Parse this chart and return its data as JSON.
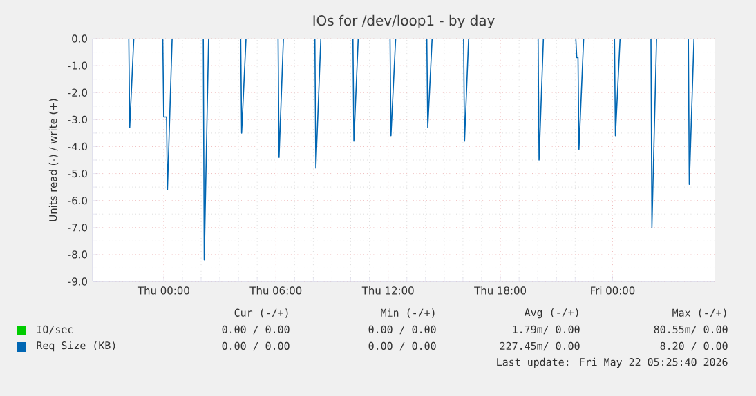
{
  "chart_data": {
    "type": "line",
    "title": "IOs for /dev/loop1 - by day",
    "ylabel": "Units read (-) / write (+)",
    "xlim": [
      "2026-05-20T20:12",
      "2026-05-22T05:27"
    ],
    "ylim": [
      -9,
      0
    ],
    "xticks": [
      {
        "value": "2026-05-21T00:00",
        "label": "Thu 00:00"
      },
      {
        "value": "2026-05-21T06:00",
        "label": "Thu 06:00"
      },
      {
        "value": "2026-05-21T12:00",
        "label": "Thu 12:00"
      },
      {
        "value": "2026-05-21T18:00",
        "label": "Thu 18:00"
      },
      {
        "value": "2026-05-22T00:00",
        "label": "Fri 00:00"
      }
    ],
    "yticks": [
      {
        "value": 0,
        "label": "0.0"
      },
      {
        "value": -1,
        "label": "-1.0"
      },
      {
        "value": -2,
        "label": "-2.0"
      },
      {
        "value": -3,
        "label": "-3.0"
      },
      {
        "value": -4,
        "label": "-4.0"
      },
      {
        "value": -5,
        "label": "-5.0"
      },
      {
        "value": -6,
        "label": "-6.0"
      },
      {
        "value": -7,
        "label": "-7.0"
      },
      {
        "value": -8,
        "label": "-8.0"
      },
      {
        "value": -9,
        "label": "-9.0"
      }
    ],
    "grid": true,
    "legend": "bottom left",
    "series": [
      {
        "name": "Req Size (KB)",
        "color": "#0066b3",
        "x": [
          "2026-05-20T20:12",
          "2026-05-20T22:08",
          "2026-05-20T22:11",
          "2026-05-20T22:24",
          "2026-05-20T23:57",
          "2026-05-21T00:00",
          "2026-05-21T00:09",
          "2026-05-21T00:12",
          "2026-05-21T00:27",
          "2026-05-21T02:07",
          "2026-05-21T02:10",
          "2026-05-21T02:24",
          "2026-05-21T04:07",
          "2026-05-21T04:10",
          "2026-05-21T04:24",
          "2026-05-21T06:07",
          "2026-05-21T06:10",
          "2026-05-21T06:24",
          "2026-05-21T08:05",
          "2026-05-21T08:08",
          "2026-05-21T08:24",
          "2026-05-21T10:07",
          "2026-05-21T10:10",
          "2026-05-21T10:24",
          "2026-05-21T12:06",
          "2026-05-21T12:09",
          "2026-05-21T12:24",
          "2026-05-21T14:04",
          "2026-05-21T14:07",
          "2026-05-21T14:21",
          "2026-05-21T16:02",
          "2026-05-21T16:05",
          "2026-05-21T16:18",
          "2026-05-21T20:01",
          "2026-05-21T20:04",
          "2026-05-21T20:18",
          "2026-05-21T22:02",
          "2026-05-21T22:05",
          "2026-05-21T22:09",
          "2026-05-21T22:12",
          "2026-05-21T22:27",
          "2026-05-22T00:06",
          "2026-05-22T00:09",
          "2026-05-22T00:24",
          "2026-05-22T02:03",
          "2026-05-22T02:06",
          "2026-05-22T02:21",
          "2026-05-22T04:03",
          "2026-05-22T04:06",
          "2026-05-22T04:21",
          "2026-05-22T05:27"
        ],
        "values": [
          0,
          0,
          -3.3,
          0,
          0,
          -2.9,
          -2.9,
          -5.6,
          0,
          0,
          -8.2,
          0,
          0,
          -3.5,
          0,
          0,
          -4.4,
          0,
          0,
          -4.8,
          0,
          0,
          -3.8,
          0,
          0,
          -3.6,
          0,
          0,
          -3.3,
          0,
          0,
          -3.8,
          0,
          0,
          -4.5,
          0,
          0,
          -0.7,
          -0.7,
          -4.1,
          0,
          0,
          -3.6,
          0,
          0,
          -7.0,
          0,
          0,
          -5.4,
          0,
          0
        ]
      },
      {
        "name": "IO/sec",
        "color": "#00cc00",
        "x": [
          "2026-05-20T20:12",
          "2026-05-22T05:27"
        ],
        "values": [
          0,
          0
        ]
      }
    ],
    "annotations": [
      "Cur (-/+)",
      "Min (-/+)",
      "Avg (-/+)",
      "Max (-/+)",
      "0.00 / 0.00",
      "0.00 / 0.00",
      "1.79m/ 0.00",
      "80.55m/ 0.00",
      "0.00 / 0.00",
      "0.00 / 0.00",
      "227.45m/ 0.00",
      "8.20 / 0.00",
      "Last update: Fri May 22 05:25:40 2026"
    ]
  }
}
